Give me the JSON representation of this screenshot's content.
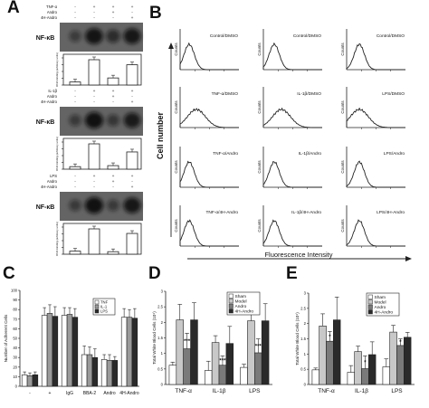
{
  "panels": {
    "A": {
      "letter": "A",
      "subpanels": [
        {
          "stimulus_rows": [
            {
              "label": "TNF-α",
              "marks": [
                "-",
                "+",
                "+",
                "+"
              ]
            },
            {
              "label": "Andro",
              "marks": [
                "-",
                "-",
                "+",
                "-"
              ]
            },
            {
              "label": "4H-Andro",
              "marks": [
                "-",
                "-",
                "-",
                "+"
              ]
            }
          ],
          "gel_label": "NF-κB",
          "ylabel": "DNA binding (arbitrary units)",
          "values": [
            12,
            100,
            28,
            80
          ]
        },
        {
          "stimulus_rows": [
            {
              "label": "IL-1β",
              "marks": [
                "-",
                "+",
                "+",
                "+"
              ]
            },
            {
              "label": "Andro",
              "marks": [
                "-",
                "-",
                "+",
                "-"
              ]
            },
            {
              "label": "4H-Andro",
              "marks": [
                "-",
                "-",
                "-",
                "+"
              ]
            }
          ],
          "gel_label": "NF-κB",
          "ylabel": "DNA binding (arbitrary units)",
          "values": [
            10,
            100,
            14,
            68
          ]
        },
        {
          "stimulus_rows": [
            {
              "label": "LPS",
              "marks": [
                "-",
                "+",
                "+",
                "+"
              ]
            },
            {
              "label": "Andro",
              "marks": [
                "-",
                "-",
                "+",
                "-"
              ]
            },
            {
              "label": "4H-Andro",
              "marks": [
                "-",
                "-",
                "-",
                "+"
              ]
            }
          ],
          "gel_label": "NF-κB",
          "ylabel": "DNA binding (arbitrary units)",
          "values": [
            12,
            100,
            10,
            82
          ]
        }
      ]
    },
    "B": {
      "letter": "B",
      "ylabel": "Cell number",
      "xlabel": "Fluorescence Intensity",
      "histogram_axis_label": "Counts",
      "cells": [
        [
          "Control/DMSO",
          "Control/DMSO",
          "Control/DMSO"
        ],
        [
          "TNF-α/DMSO",
          "IL-1β/DMSO",
          "LPS/DMSO"
        ],
        [
          "TNF-α/Andro",
          "IL-1β/Andro",
          "LPS/Andro"
        ],
        [
          "TNF-α/4H-Andro",
          "IL-1β/4H-Andro",
          "LPS/4H-Andro"
        ]
      ]
    },
    "C": {
      "letter": "C"
    },
    "D": {
      "letter": "D"
    },
    "E": {
      "letter": "E"
    }
  },
  "chart_data": [
    {
      "panel": "C",
      "type": "bar",
      "ylabel": "Number of Adherent Cells",
      "ylim": [
        0,
        100
      ],
      "yticks": [
        0,
        10,
        20,
        30,
        40,
        50,
        60,
        70,
        80,
        90,
        100
      ],
      "categories": [
        "-",
        "+",
        "IgG",
        "BBA-2",
        "Andro",
        "4H-Andro"
      ],
      "series": [
        {
          "name": "TNF",
          "fill": "#ffffff",
          "values": [
            12,
            74,
            74,
            33,
            28,
            72
          ],
          "errors": [
            3,
            8,
            8,
            9,
            5,
            9
          ]
        },
        {
          "name": "IL-1",
          "fill": "#9a9a9a",
          "values": [
            11,
            76,
            75,
            33,
            27,
            72
          ],
          "errors": [
            3,
            9,
            7,
            8,
            6,
            8
          ]
        },
        {
          "name": "LPS",
          "fill": "#2a2a2a",
          "values": [
            12,
            73,
            72,
            30,
            27,
            71
          ],
          "errors": [
            3,
            10,
            9,
            9,
            4,
            10
          ]
        }
      ]
    },
    {
      "panel": "D",
      "type": "bar",
      "ylabel": "Total White Blood Cells (10⁶)",
      "ylim": [
        0,
        3
      ],
      "yticks": [
        0,
        0.5,
        1,
        1.5,
        2,
        2.5,
        3
      ],
      "categories": [
        "TNF-α",
        "IL-1β",
        "LPS"
      ],
      "annotations": [
        "***",
        "***",
        "***"
      ],
      "series": [
        {
          "name": "Sham",
          "fill": "#ffffff",
          "values": [
            0.62,
            0.45,
            0.55
          ],
          "errors": [
            0.1,
            0.3,
            0.1
          ]
        },
        {
          "name": "Model",
          "fill": "#c8c8c8",
          "values": [
            2.08,
            1.35,
            2.05
          ],
          "errors": [
            0.5,
            0.22,
            0.6
          ]
        },
        {
          "name": "Andro",
          "fill": "#7a7a7a",
          "values": [
            1.15,
            0.62,
            1.02
          ],
          "errors": [
            0.5,
            0.3,
            0.45
          ]
        },
        {
          "name": "4H-Andro",
          "fill": "#2a2a2a",
          "values": [
            2.08,
            1.32,
            2.05
          ],
          "errors": [
            0.55,
            0.55,
            0.55
          ]
        }
      ]
    },
    {
      "panel": "E",
      "type": "bar",
      "ylabel": "Total White Blood Cells (10⁶)",
      "ylim": [
        0,
        3
      ],
      "yticks": [
        0,
        0.5,
        1,
        1.5,
        2,
        2.5,
        3
      ],
      "categories": [
        "TNF-α",
        "IL-1β",
        "LPS"
      ],
      "annotations": [
        "*",
        "*",
        "*"
      ],
      "series": [
        {
          "name": "Sham",
          "fill": "#ffffff",
          "values": [
            0.48,
            0.4,
            0.58
          ],
          "errors": [
            0.06,
            0.22,
            0.26
          ]
        },
        {
          "name": "Model",
          "fill": "#c8c8c8",
          "values": [
            1.92,
            1.08,
            1.72
          ],
          "errors": [
            0.4,
            0.18,
            0.22
          ]
        },
        {
          "name": "Andro",
          "fill": "#7a7a7a",
          "values": [
            1.42,
            0.52,
            1.28
          ],
          "errors": [
            0.32,
            0.42,
            0.22
          ]
        },
        {
          "name": "4H-Andro",
          "fill": "#2a2a2a",
          "values": [
            2.12,
            0.98,
            1.55
          ],
          "errors": [
            0.75,
            0.42,
            0.16
          ]
        }
      ]
    }
  ]
}
